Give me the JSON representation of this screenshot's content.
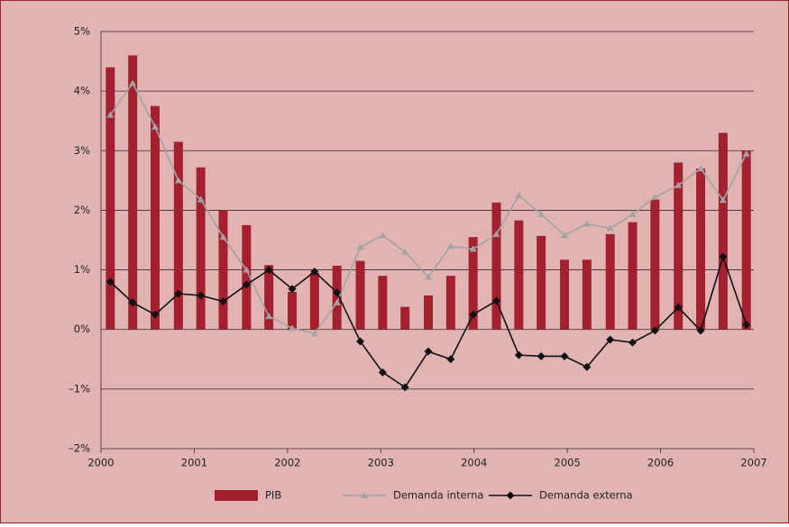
{
  "chart_data": {
    "type": "bar",
    "x": [
      2000.1,
      2000.34,
      2000.58,
      2000.83,
      2001.07,
      2001.31,
      2001.56,
      2001.8,
      2002.05,
      2002.29,
      2002.53,
      2002.78,
      2003.02,
      2003.26,
      2003.51,
      2003.75,
      2003.99,
      2004.24,
      2004.48,
      2004.72,
      2004.97,
      2005.21,
      2005.46,
      2005.7,
      2005.94,
      2006.19,
      2006.43,
      2006.67,
      2006.92
    ],
    "series": [
      {
        "name": "PIB",
        "type": "bar",
        "color": "#a3202e",
        "values": [
          4.4,
          4.6,
          3.75,
          3.15,
          2.72,
          2.0,
          1.75,
          1.08,
          0.63,
          0.95,
          1.07,
          1.15,
          0.9,
          0.38,
          0.57,
          0.9,
          1.55,
          2.13,
          1.83,
          1.57,
          1.17,
          1.17,
          1.6,
          1.8,
          2.18,
          2.8,
          2.7,
          3.3,
          3.0
        ]
      },
      {
        "name": "Demanda interna",
        "type": "line",
        "marker": "triangle",
        "color": "#a3a3a3",
        "values": [
          3.6,
          4.13,
          3.4,
          2.5,
          2.18,
          1.55,
          1.0,
          0.22,
          0.02,
          -0.07,
          0.45,
          1.38,
          1.58,
          1.3,
          0.88,
          1.4,
          1.35,
          1.6,
          2.25,
          1.93,
          1.58,
          1.77,
          1.7,
          1.93,
          2.22,
          2.42,
          2.7,
          2.17,
          2.95
        ]
      },
      {
        "name": "Demanda externa",
        "type": "line",
        "marker": "diamond",
        "color": "#111111",
        "values": [
          0.8,
          0.45,
          0.25,
          0.6,
          0.57,
          0.47,
          0.75,
          1.0,
          0.68,
          0.97,
          0.62,
          -0.2,
          -0.72,
          -0.97,
          -0.37,
          -0.5,
          0.25,
          0.48,
          -0.43,
          -0.45,
          -0.45,
          -0.63,
          -0.17,
          -0.22,
          -0.02,
          0.37,
          -0.02,
          1.22,
          0.08
        ]
      }
    ],
    "xlim": [
      2000,
      2007
    ],
    "xticks": [
      2000,
      2001,
      2002,
      2003,
      2004,
      2005,
      2006,
      2007
    ],
    "ylim": [
      -2,
      5
    ],
    "yticks": [
      {
        "value": -2,
        "label": "–2%"
      },
      {
        "value": -1,
        "label": "–1%"
      },
      {
        "value": 0,
        "label": "0%"
      },
      {
        "value": 1,
        "label": "1%"
      },
      {
        "value": 2,
        "label": "2%"
      },
      {
        "value": 3,
        "label": "3%"
      },
      {
        "value": 4,
        "label": "4%"
      },
      {
        "value": 5,
        "label": "5%"
      }
    ],
    "grid": true,
    "legend": "bottom"
  }
}
